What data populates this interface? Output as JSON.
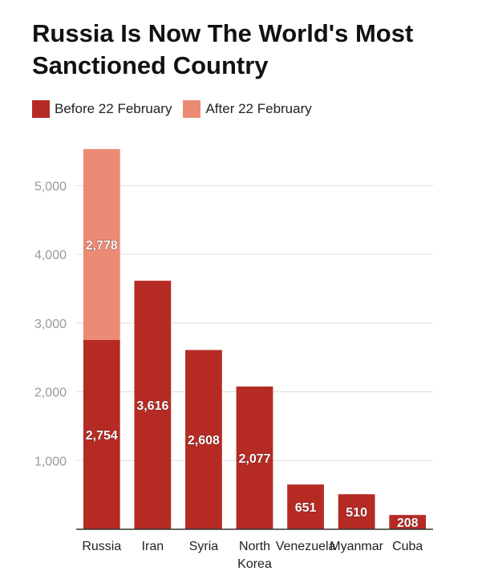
{
  "chart_data": {
    "type": "bar",
    "stacked": true,
    "title": "Russia Is Now The World's Most Sanctioned Country",
    "xlabel": "",
    "ylabel": "",
    "categories": [
      "Russia",
      "Iran",
      "Syria",
      "North Korea",
      "Venezuela",
      "Myanmar",
      "Cuba"
    ],
    "series": [
      {
        "name": "Before 22 February",
        "color": "#b52b24",
        "values": [
          2754,
          3616,
          2608,
          2077,
          651,
          510,
          208
        ],
        "labels": [
          "2,754",
          "3,616",
          "2,608",
          "2,077",
          "651",
          "510",
          "208"
        ]
      },
      {
        "name": "After 22 February",
        "color": "#ec8b75",
        "values": [
          2778,
          0,
          0,
          0,
          0,
          0,
          0
        ],
        "labels": [
          "2,778",
          "",
          "",
          "",
          "",
          "",
          ""
        ]
      }
    ],
    "ylim": [
      0,
      5600
    ],
    "yticks": [
      1000,
      2000,
      3000,
      4000,
      5000
    ],
    "ytick_labels": [
      "1,000",
      "2,000",
      "3,000",
      "4,000",
      "5,000"
    ],
    "grid": true,
    "legend_position": "top-left"
  }
}
